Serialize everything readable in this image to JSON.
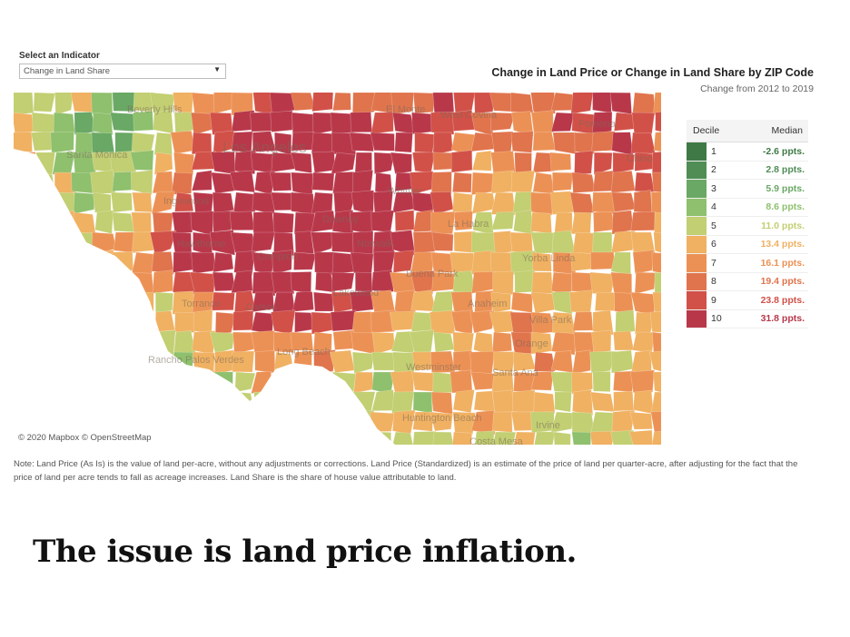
{
  "filter": {
    "label": "Select an Indicator",
    "selected": "Change in Land Share"
  },
  "chart": {
    "title": "Change in Land Price or Change in Land Share by ZIP Code",
    "subtitle": "Change from 2012 to 2019"
  },
  "map": {
    "attribution": "© 2020 Mapbox © OpenStreetMap",
    "place_labels": [
      "Beverly Hills",
      "Los Angeles",
      "Santa Monica",
      "Inglewood",
      "Hawthorne",
      "Compton",
      "Torrance",
      "Carson",
      "Rancho Palos Verdes",
      "Long Beach",
      "Downey",
      "Norwalk",
      "Whittier",
      "La Habra",
      "Buena Park",
      "Lakewood",
      "Anaheim",
      "Yorba Linda",
      "Villa Park",
      "Orange",
      "Westminster",
      "Santa Ana",
      "Huntington Beach",
      "Costa Mesa",
      "Irvine",
      "Pomona",
      "Chino",
      "El Monte",
      "West Covina"
    ],
    "colors": {
      "land": "#e8e3dc",
      "water": "#ffffff"
    }
  },
  "legend": {
    "header_decile": "Decile",
    "header_median": "Median",
    "rows": [
      {
        "decile": "1",
        "median": "-2.6 ppts.",
        "color": "#3f7a46"
      },
      {
        "decile": "2",
        "median": "2.8 ppts.",
        "color": "#4f8d55"
      },
      {
        "decile": "3",
        "median": "5.9 ppts.",
        "color": "#6aa865"
      },
      {
        "decile": "4",
        "median": "8.6 ppts.",
        "color": "#8fc06d"
      },
      {
        "decile": "5",
        "median": "11.0 ppts.",
        "color": "#c2cf72"
      },
      {
        "decile": "6",
        "median": "13.4 ppts.",
        "color": "#f0b162"
      },
      {
        "decile": "7",
        "median": "16.1 ppts.",
        "color": "#ec9155"
      },
      {
        "decile": "8",
        "median": "19.4 ppts.",
        "color": "#e0744d"
      },
      {
        "decile": "9",
        "median": "23.8 ppts.",
        "color": "#d15148"
      },
      {
        "decile": "10",
        "median": "31.8 ppts.",
        "color": "#b8384a"
      }
    ]
  },
  "note": "Note: Land Price (As Is) is the value of land per-acre, without any adjustments or corrections. Land Price (Standardized) is an estimate of the price of land per quarter-acre, after adjusting for the fact that the price of land per acre tends to fall as acreage increases. Land Share is the share of house value attributable to land.",
  "headline": "The issue is land price inflation."
}
